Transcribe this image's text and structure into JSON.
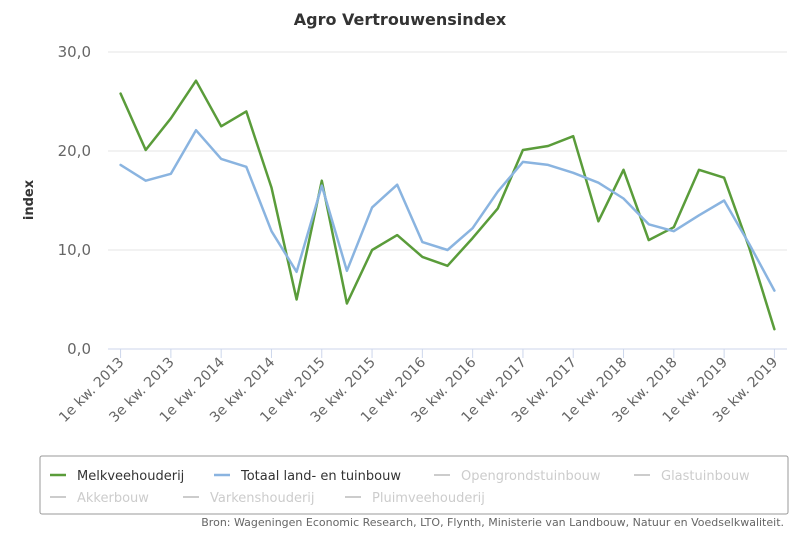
{
  "chart_data": {
    "type": "line",
    "title": "Agro Vertrouwensindex",
    "ylabel": "index",
    "xlabel": "",
    "ylim": [
      0,
      30
    ],
    "yticks": [
      "0,0",
      "10,0",
      "20,0",
      "30,0"
    ],
    "ytick_values": [
      0,
      10,
      20,
      30
    ],
    "grid": true,
    "legend_position": "bottom",
    "categories": [
      "1e kw. 2013",
      "2e kw. 2013",
      "3e kw. 2013",
      "4e kw. 2013",
      "1e kw. 2014",
      "2e kw. 2014",
      "3e kw. 2014",
      "4e kw. 2014",
      "1e kw. 2015",
      "2e kw. 2015",
      "3e kw. 2015",
      "4e kw. 2015",
      "1e kw. 2016",
      "2e kw. 2016",
      "3e kw. 2016",
      "4e kw. 2016",
      "1e kw. 2017",
      "2e kw. 2017",
      "3e kw. 2017",
      "4e kw. 2017",
      "1e kw. 2018",
      "2e kw. 2018",
      "3e kw. 2018",
      "4e kw. 2018",
      "1e kw. 2019",
      "2e kw. 2019",
      "3e kw. 2019"
    ],
    "x_tick_labels": [
      "1e kw. 2013",
      "3e kw. 2013",
      "1e kw. 2014",
      "3e kw. 2014",
      "1e kw. 2015",
      "3e kw. 2015",
      "1e kw. 2016",
      "3e kw. 2016",
      "1e kw. 2017",
      "3e kw. 2017",
      "1e kw. 2018",
      "3e kw. 2018",
      "1e kw. 2019",
      "3e kw. 2019"
    ],
    "series": [
      {
        "name": "Melkveehouderij",
        "color": "#5a9c3a",
        "visible": true,
        "values": [
          25.8,
          20.1,
          23.3,
          27.1,
          22.5,
          24.0,
          16.3,
          5.0,
          17.0,
          4.6,
          10.0,
          11.5,
          9.3,
          8.4,
          11.2,
          14.2,
          20.1,
          20.5,
          21.5,
          12.9,
          18.1,
          11.0,
          12.3,
          18.1,
          17.3,
          10.2,
          2.0
        ]
      },
      {
        "name": "Totaal land- en tuinbouw",
        "color": "#8ab4e0",
        "visible": true,
        "values": [
          18.6,
          17.0,
          17.7,
          22.1,
          19.2,
          18.4,
          11.9,
          7.8,
          16.5,
          7.9,
          14.3,
          16.6,
          10.8,
          10.0,
          12.2,
          15.9,
          18.9,
          18.6,
          17.8,
          16.8,
          15.2,
          12.6,
          11.9,
          13.5,
          15.0,
          10.6,
          5.9
        ]
      }
    ],
    "legend": {
      "items": [
        {
          "name": "Melkveehouderij",
          "color": "#5a9c3a",
          "active": true
        },
        {
          "name": "Totaal land- en tuinbouw",
          "color": "#8ab4e0",
          "active": true
        },
        {
          "name": "Opengrondstuinbouw",
          "color": "#cccccc",
          "active": false
        },
        {
          "name": "Glastuinbouw",
          "color": "#cccccc",
          "active": false
        },
        {
          "name": "Akkerbouw",
          "color": "#cccccc",
          "active": false
        },
        {
          "name": "Varkenshouderij",
          "color": "#cccccc",
          "active": false
        },
        {
          "name": "Pluimveehouderij",
          "color": "#cccccc",
          "active": false
        }
      ]
    },
    "source": "Bron: Wageningen Economic Research, LTO, Flynth, Ministerie van Landbouw, Natuur en Voedselkwaliteit."
  }
}
